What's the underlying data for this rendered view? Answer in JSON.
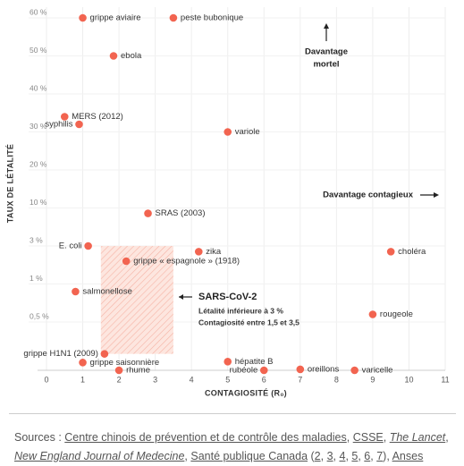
{
  "chart_data": {
    "type": "scatter",
    "x_label": "CONTAGIOSITÉ (R₀)",
    "y_label": "TAUX DE LÉTALITÉ",
    "xlim": [
      0,
      11
    ],
    "xticks": [
      0,
      1,
      2,
      3,
      4,
      5,
      6,
      7,
      8,
      9,
      10,
      11
    ],
    "ylim": [
      0,
      60
    ],
    "yticks": [
      {
        "value": 60,
        "label": "60 %"
      },
      {
        "value": 50,
        "label": "50 %"
      },
      {
        "value": 40,
        "label": "40 %"
      },
      {
        "value": 30,
        "label": "30 %"
      },
      {
        "value": 20,
        "label": "20 %"
      },
      {
        "value": 10,
        "label": "10 %"
      },
      {
        "value": 3,
        "label": "3 %"
      },
      {
        "value": 1,
        "label": "1 %"
      },
      {
        "value": 0.5,
        "label": "0,5 %"
      }
    ],
    "grid": true,
    "series": [
      {
        "color": "#f26450",
        "labels": [
          "grippe aviaire",
          "peste bubonique",
          "ebola",
          "MERS (2012)",
          "syphilis",
          "variole",
          "SRAS (2003)",
          "E. coli",
          "zika",
          "choléra",
          "grippe « espagnole » (1918)",
          "salmonellose",
          "rougeole",
          "grippe H1N1 (2009)",
          "grippe saisonnière",
          "rhume",
          "hépatite B",
          "rubéole",
          "oreillons",
          "varicelle"
        ],
        "x": [
          1,
          3.5,
          1.85,
          0.5,
          0.9,
          5,
          2.8,
          1.15,
          4.2,
          9.5,
          2.2,
          0.8,
          9,
          1.6,
          1,
          2,
          5,
          6,
          7,
          8.5
        ],
        "y": [
          60,
          60,
          50,
          34,
          32,
          30,
          9,
          3,
          2.7,
          2.7,
          2.2,
          0.9,
          0.6,
          0.17,
          0.08,
          0,
          0.09,
          0,
          0.01,
          0
        ]
      }
    ],
    "highlight": {
      "xlim": [
        1.5,
        3.5
      ],
      "ylim": [
        0.17,
        3
      ],
      "title": "SARS-CoV-2",
      "lines": [
        "Létalité inférieure à 3 %",
        "Contagiosité entre 1,5 et 3,5"
      ]
    },
    "annotations": {
      "mortal": [
        "Davantage",
        "mortel"
      ],
      "contagious": "Davantage contagieux"
    }
  },
  "sources": [
    {
      "text": "Sources : "
    },
    {
      "text": "Centre chinois de prévention et de contrôle des maladies",
      "link": true
    },
    {
      "text": ", "
    },
    {
      "text": "CSSE",
      "link": true
    },
    {
      "text": ", "
    },
    {
      "text": "The Lancet",
      "link": true,
      "italic": true
    },
    {
      "text": ", "
    },
    {
      "text": "New England Journal of Medecine",
      "link": true,
      "italic": true
    },
    {
      "text": ", "
    },
    {
      "text": "Santé publique Canada",
      "link": true
    },
    {
      "text": " ("
    },
    {
      "text": "2",
      "link": true
    },
    {
      "text": ", "
    },
    {
      "text": "3",
      "link": true
    },
    {
      "text": ", "
    },
    {
      "text": "4",
      "link": true
    },
    {
      "text": ", "
    },
    {
      "text": "5",
      "link": true
    },
    {
      "text": ", "
    },
    {
      "text": "6",
      "link": true
    },
    {
      "text": ", "
    },
    {
      "text": "7",
      "link": true
    },
    {
      "text": "), "
    },
    {
      "text": "Anses",
      "link": true
    }
  ]
}
